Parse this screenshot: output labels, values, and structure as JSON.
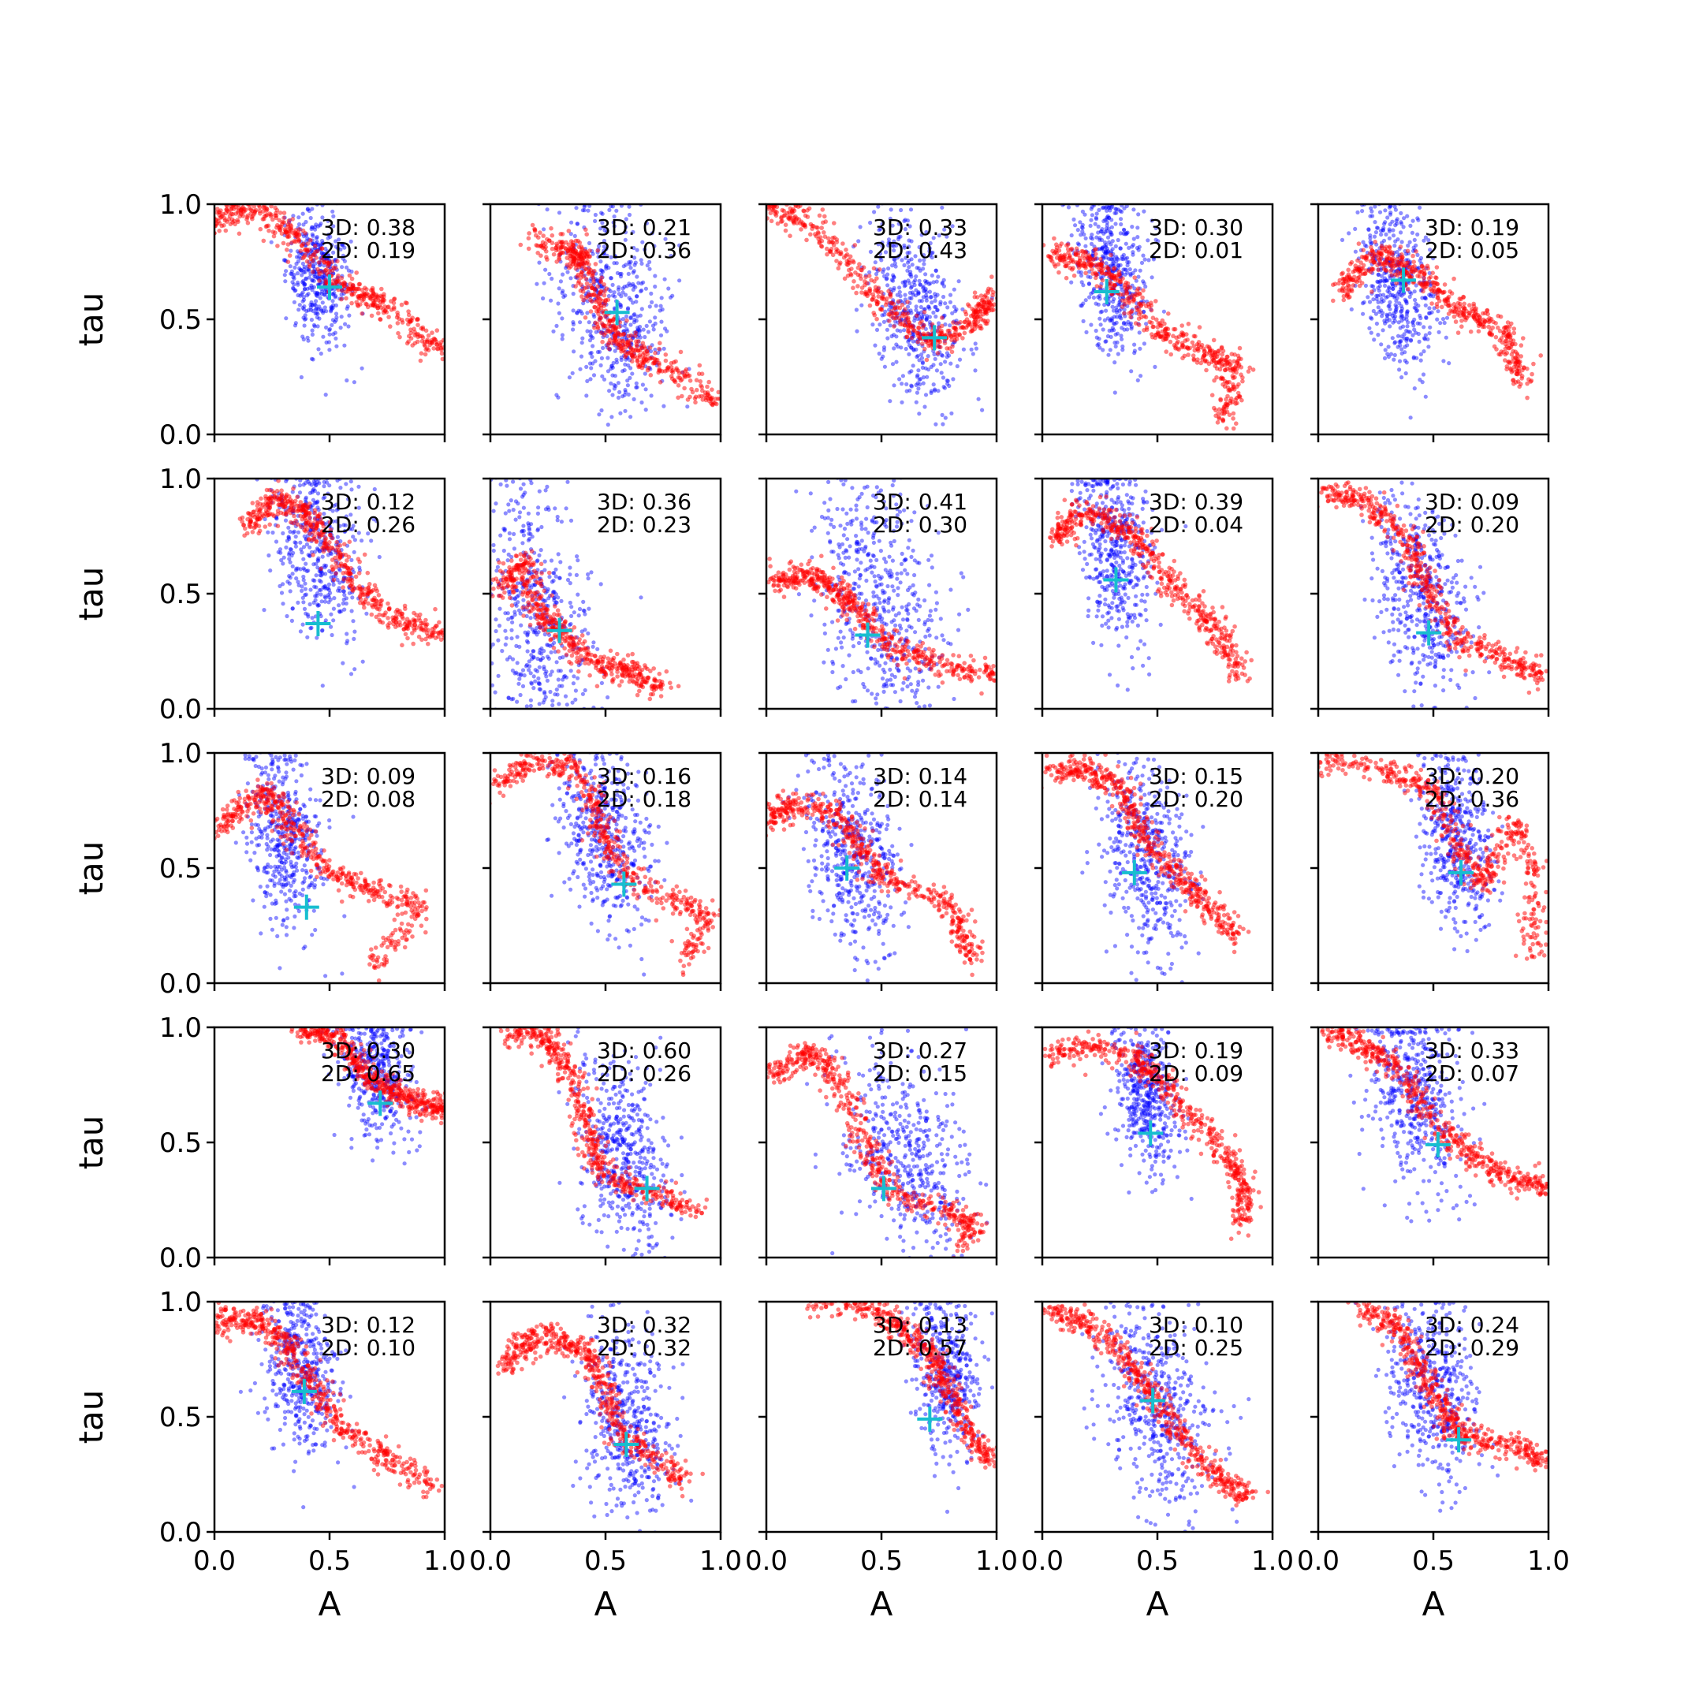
{
  "figure": {
    "xlabel": "A",
    "ylabel": "tau",
    "xticks": [
      "0.0",
      "0.5",
      "1.0"
    ],
    "yticks": [
      "0.0",
      "0.5",
      "1.0"
    ]
  },
  "chart_data": {
    "type": "scatter",
    "xlim": [
      0,
      1
    ],
    "ylim": [
      0,
      1
    ],
    "grid": false,
    "legend": "none",
    "colors": {
      "blue": "#0000ff",
      "red": "#ff0000",
      "cross": "#17becf"
    },
    "panels": [
      {
        "row": 0,
        "col": 0,
        "text_3d": "3D: 0.38",
        "text_2d": "2D: 0.19",
        "cross": [
          0.5,
          0.64
        ],
        "blue": {
          "cx": 0.45,
          "cy": 0.68,
          "sx": 0.07,
          "sy": 0.14,
          "n": 420
        },
        "red": [
          [
            0.0,
            0.92
          ],
          [
            0.18,
            1.0
          ],
          [
            0.35,
            0.86
          ],
          [
            0.55,
            0.65
          ],
          [
            0.75,
            0.55
          ],
          [
            1.0,
            0.35
          ]
        ]
      },
      {
        "row": 0,
        "col": 1,
        "text_3d": "3D: 0.21",
        "text_2d": "2D: 0.36",
        "cross": [
          0.55,
          0.53
        ],
        "blue": {
          "cx": 0.52,
          "cy": 0.55,
          "sx": 0.12,
          "sy": 0.22,
          "n": 500
        },
        "red": [
          [
            0.18,
            0.85
          ],
          [
            0.35,
            0.8
          ],
          [
            0.4,
            0.75
          ],
          [
            0.48,
            0.55
          ],
          [
            0.55,
            0.4
          ],
          [
            0.75,
            0.3
          ],
          [
            1.0,
            0.12
          ]
        ]
      },
      {
        "row": 0,
        "col": 2,
        "text_3d": "3D: 0.33",
        "text_2d": "2D: 0.43",
        "cross": [
          0.73,
          0.42
        ],
        "blue": {
          "cx": 0.65,
          "cy": 0.55,
          "sx": 0.1,
          "sy": 0.2,
          "n": 480
        },
        "red": [
          [
            0.0,
            1.0
          ],
          [
            0.2,
            0.9
          ],
          [
            0.4,
            0.7
          ],
          [
            0.6,
            0.48
          ],
          [
            0.75,
            0.4
          ],
          [
            0.9,
            0.5
          ],
          [
            1.0,
            0.6
          ]
        ]
      },
      {
        "row": 0,
        "col": 3,
        "text_3d": "3D: 0.30",
        "text_2d": "2D: 0.01",
        "cross": [
          0.28,
          0.62
        ],
        "blue": {
          "cx": 0.3,
          "cy": 0.72,
          "sx": 0.08,
          "sy": 0.18,
          "n": 460
        },
        "red": [
          [
            0.05,
            0.78
          ],
          [
            0.2,
            0.75
          ],
          [
            0.35,
            0.65
          ],
          [
            0.5,
            0.45
          ],
          [
            0.7,
            0.35
          ],
          [
            0.85,
            0.3
          ],
          [
            0.78,
            0.05
          ]
        ]
      },
      {
        "row": 0,
        "col": 4,
        "text_3d": "3D: 0.19",
        "text_2d": "2D: 0.05",
        "cross": [
          0.37,
          0.67
        ],
        "blue": {
          "cx": 0.35,
          "cy": 0.65,
          "sx": 0.08,
          "sy": 0.18,
          "n": 460
        },
        "red": [
          [
            0.1,
            0.62
          ],
          [
            0.25,
            0.78
          ],
          [
            0.4,
            0.72
          ],
          [
            0.6,
            0.55
          ],
          [
            0.8,
            0.45
          ],
          [
            0.9,
            0.22
          ]
        ]
      },
      {
        "row": 1,
        "col": 0,
        "text_3d": "3D: 0.12",
        "text_2d": "2D: 0.26",
        "cross": [
          0.45,
          0.37
        ],
        "blue": {
          "cx": 0.45,
          "cy": 0.7,
          "sx": 0.1,
          "sy": 0.2,
          "n": 460
        },
        "red": [
          [
            0.15,
            0.78
          ],
          [
            0.25,
            0.92
          ],
          [
            0.4,
            0.85
          ],
          [
            0.5,
            0.7
          ],
          [
            0.65,
            0.5
          ],
          [
            0.8,
            0.38
          ],
          [
            1.0,
            0.32
          ]
        ]
      },
      {
        "row": 1,
        "col": 1,
        "text_3d": "3D: 0.36",
        "text_2d": "2D: 0.23",
        "cross": [
          0.3,
          0.34
        ],
        "blue": {
          "cx": 0.2,
          "cy": 0.4,
          "sx": 0.12,
          "sy": 0.28,
          "n": 520
        },
        "red": [
          [
            0.05,
            0.5
          ],
          [
            0.15,
            0.65
          ],
          [
            0.2,
            0.45
          ],
          [
            0.3,
            0.32
          ],
          [
            0.45,
            0.2
          ],
          [
            0.6,
            0.17
          ],
          [
            0.75,
            0.08
          ]
        ]
      },
      {
        "row": 1,
        "col": 2,
        "text_3d": "3D: 0.41",
        "text_2d": "2D: 0.30",
        "cross": [
          0.44,
          0.32
        ],
        "blue": {
          "cx": 0.5,
          "cy": 0.45,
          "sx": 0.14,
          "sy": 0.25,
          "n": 520
        },
        "red": [
          [
            0.02,
            0.55
          ],
          [
            0.2,
            0.58
          ],
          [
            0.35,
            0.48
          ],
          [
            0.5,
            0.3
          ],
          [
            0.7,
            0.2
          ],
          [
            1.0,
            0.15
          ]
        ]
      },
      {
        "row": 1,
        "col": 3,
        "text_3d": "3D: 0.39",
        "text_2d": "2D: 0.04",
        "cross": [
          0.32,
          0.56
        ],
        "blue": {
          "cx": 0.32,
          "cy": 0.72,
          "sx": 0.08,
          "sy": 0.2,
          "n": 480
        },
        "red": [
          [
            0.05,
            0.72
          ],
          [
            0.15,
            0.85
          ],
          [
            0.3,
            0.82
          ],
          [
            0.45,
            0.7
          ],
          [
            0.6,
            0.5
          ],
          [
            0.75,
            0.35
          ],
          [
            0.85,
            0.15
          ]
        ]
      },
      {
        "row": 1,
        "col": 4,
        "text_3d": "3D: 0.09",
        "text_2d": "2D: 0.20",
        "cross": [
          0.48,
          0.33
        ],
        "blue": {
          "cx": 0.45,
          "cy": 0.5,
          "sx": 0.1,
          "sy": 0.2,
          "n": 480
        },
        "red": [
          [
            0.02,
            0.95
          ],
          [
            0.2,
            0.9
          ],
          [
            0.38,
            0.75
          ],
          [
            0.48,
            0.5
          ],
          [
            0.6,
            0.3
          ],
          [
            0.8,
            0.22
          ],
          [
            0.97,
            0.15
          ]
        ]
      },
      {
        "row": 2,
        "col": 0,
        "text_3d": "3D: 0.09",
        "text_2d": "2D: 0.08",
        "cross": [
          0.4,
          0.33
        ],
        "blue": {
          "cx": 0.3,
          "cy": 0.65,
          "sx": 0.08,
          "sy": 0.2,
          "n": 460
        },
        "red": [
          [
            0.02,
            0.68
          ],
          [
            0.15,
            0.78
          ],
          [
            0.25,
            0.82
          ],
          [
            0.35,
            0.65
          ],
          [
            0.5,
            0.48
          ],
          [
            0.7,
            0.4
          ],
          [
            0.9,
            0.33
          ],
          [
            0.7,
            0.07
          ]
        ]
      },
      {
        "row": 2,
        "col": 1,
        "text_3d": "3D: 0.16",
        "text_2d": "2D: 0.18",
        "cross": [
          0.58,
          0.43
        ],
        "blue": {
          "cx": 0.5,
          "cy": 0.65,
          "sx": 0.1,
          "sy": 0.2,
          "n": 480
        },
        "red": [
          [
            0.02,
            0.85
          ],
          [
            0.15,
            0.95
          ],
          [
            0.35,
            0.95
          ],
          [
            0.45,
            0.8
          ],
          [
            0.5,
            0.6
          ],
          [
            0.6,
            0.45
          ],
          [
            0.8,
            0.35
          ],
          [
            0.95,
            0.3
          ],
          [
            0.85,
            0.1
          ]
        ]
      },
      {
        "row": 2,
        "col": 2,
        "text_3d": "3D: 0.14",
        "text_2d": "2D: 0.14",
        "cross": [
          0.35,
          0.5
        ],
        "blue": {
          "cx": 0.38,
          "cy": 0.55,
          "sx": 0.1,
          "sy": 0.2,
          "n": 480
        },
        "red": [
          [
            0.02,
            0.7
          ],
          [
            0.1,
            0.78
          ],
          [
            0.3,
            0.75
          ],
          [
            0.4,
            0.6
          ],
          [
            0.5,
            0.45
          ],
          [
            0.75,
            0.38
          ],
          [
            0.85,
            0.25
          ],
          [
            0.88,
            0.1
          ]
        ]
      },
      {
        "row": 2,
        "col": 3,
        "text_3d": "3D: 0.15",
        "text_2d": "2D: 0.20",
        "cross": [
          0.4,
          0.48
        ],
        "blue": {
          "cx": 0.45,
          "cy": 0.55,
          "sx": 0.1,
          "sy": 0.2,
          "n": 480
        },
        "red": [
          [
            0.02,
            0.92
          ],
          [
            0.2,
            0.92
          ],
          [
            0.35,
            0.85
          ],
          [
            0.45,
            0.6
          ],
          [
            0.6,
            0.45
          ],
          [
            0.7,
            0.35
          ],
          [
            0.85,
            0.2
          ]
        ]
      },
      {
        "row": 2,
        "col": 4,
        "text_3d": "3D: 0.20",
        "text_2d": "2D: 0.36",
        "cross": [
          0.62,
          0.48
        ],
        "blue": {
          "cx": 0.6,
          "cy": 0.62,
          "sx": 0.08,
          "sy": 0.18,
          "n": 460
        },
        "red": [
          [
            0.02,
            0.97
          ],
          [
            0.3,
            0.92
          ],
          [
            0.5,
            0.85
          ],
          [
            0.6,
            0.6
          ],
          [
            0.72,
            0.42
          ],
          [
            0.85,
            0.7
          ],
          [
            0.95,
            0.45
          ],
          [
            0.92,
            0.1
          ]
        ]
      },
      {
        "row": 3,
        "col": 0,
        "text_3d": "3D: 0.30",
        "text_2d": "2D: 0.65",
        "cross": [
          0.72,
          0.67
        ],
        "blue": {
          "cx": 0.7,
          "cy": 0.8,
          "sx": 0.08,
          "sy": 0.14,
          "n": 420
        },
        "red": [
          [
            0.35,
            1.0
          ],
          [
            0.55,
            0.95
          ],
          [
            0.7,
            0.75
          ],
          [
            0.85,
            0.68
          ],
          [
            1.0,
            0.65
          ]
        ]
      },
      {
        "row": 3,
        "col": 1,
        "text_3d": "3D: 0.60",
        "text_2d": "2D: 0.26",
        "cross": [
          0.68,
          0.3
        ],
        "blue": {
          "cx": 0.58,
          "cy": 0.45,
          "sx": 0.1,
          "sy": 0.22,
          "n": 480
        },
        "red": [
          [
            0.1,
            0.98
          ],
          [
            0.25,
            0.95
          ],
          [
            0.35,
            0.8
          ],
          [
            0.42,
            0.55
          ],
          [
            0.5,
            0.35
          ],
          [
            0.7,
            0.28
          ],
          [
            0.9,
            0.2
          ]
        ]
      },
      {
        "row": 3,
        "col": 2,
        "text_3d": "3D: 0.27",
        "text_2d": "2D: 0.15",
        "cross": [
          0.51,
          0.3
        ],
        "blue": {
          "cx": 0.6,
          "cy": 0.42,
          "sx": 0.14,
          "sy": 0.22,
          "n": 480
        },
        "red": [
          [
            0.02,
            0.78
          ],
          [
            0.15,
            0.88
          ],
          [
            0.25,
            0.85
          ],
          [
            0.35,
            0.7
          ],
          [
            0.45,
            0.45
          ],
          [
            0.55,
            0.28
          ],
          [
            0.75,
            0.22
          ],
          [
            0.9,
            0.15
          ],
          [
            0.85,
            0.05
          ]
        ]
      },
      {
        "row": 3,
        "col": 3,
        "text_3d": "3D: 0.19",
        "text_2d": "2D: 0.09",
        "cross": [
          0.47,
          0.54
        ],
        "blue": {
          "cx": 0.45,
          "cy": 0.72,
          "sx": 0.07,
          "sy": 0.16,
          "n": 460
        },
        "red": [
          [
            0.02,
            0.88
          ],
          [
            0.2,
            0.92
          ],
          [
            0.4,
            0.88
          ],
          [
            0.5,
            0.78
          ],
          [
            0.65,
            0.62
          ],
          [
            0.8,
            0.45
          ],
          [
            0.88,
            0.3
          ],
          [
            0.87,
            0.12
          ]
        ]
      },
      {
        "row": 3,
        "col": 4,
        "text_3d": "3D: 0.33",
        "text_2d": "2D: 0.07",
        "cross": [
          0.52,
          0.49
        ],
        "blue": {
          "cx": 0.42,
          "cy": 0.7,
          "sx": 0.1,
          "sy": 0.2,
          "n": 480
        },
        "red": [
          [
            0.02,
            1.0
          ],
          [
            0.2,
            0.92
          ],
          [
            0.35,
            0.82
          ],
          [
            0.5,
            0.6
          ],
          [
            0.65,
            0.45
          ],
          [
            0.8,
            0.35
          ],
          [
            1.0,
            0.3
          ]
        ]
      },
      {
        "row": 4,
        "col": 0,
        "text_3d": "3D: 0.12",
        "text_2d": "2D: 0.10",
        "cross": [
          0.39,
          0.61
        ],
        "blue": {
          "cx": 0.38,
          "cy": 0.72,
          "sx": 0.08,
          "sy": 0.18,
          "n": 460
        },
        "red": [
          [
            0.02,
            0.92
          ],
          [
            0.15,
            0.92
          ],
          [
            0.3,
            0.85
          ],
          [
            0.4,
            0.68
          ],
          [
            0.55,
            0.45
          ],
          [
            0.75,
            0.32
          ],
          [
            0.95,
            0.2
          ]
        ]
      },
      {
        "row": 4,
        "col": 1,
        "text_3d": "3D: 0.32",
        "text_2d": "2D: 0.32",
        "cross": [
          0.59,
          0.38
        ],
        "blue": {
          "cx": 0.6,
          "cy": 0.45,
          "sx": 0.1,
          "sy": 0.2,
          "n": 480
        },
        "red": [
          [
            0.05,
            0.7
          ],
          [
            0.15,
            0.82
          ],
          [
            0.28,
            0.85
          ],
          [
            0.42,
            0.78
          ],
          [
            0.5,
            0.6
          ],
          [
            0.55,
            0.42
          ],
          [
            0.7,
            0.33
          ],
          [
            0.85,
            0.22
          ]
        ]
      },
      {
        "row": 4,
        "col": 2,
        "text_3d": "3D: 0.13",
        "text_2d": "2D: 0.57",
        "cross": [
          0.71,
          0.49
        ],
        "blue": {
          "cx": 0.78,
          "cy": 0.7,
          "sx": 0.08,
          "sy": 0.18,
          "n": 440
        },
        "red": [
          [
            0.2,
            1.0
          ],
          [
            0.45,
            0.98
          ],
          [
            0.6,
            0.88
          ],
          [
            0.72,
            0.75
          ],
          [
            0.8,
            0.6
          ],
          [
            0.88,
            0.42
          ],
          [
            1.0,
            0.3
          ]
        ]
      },
      {
        "row": 4,
        "col": 3,
        "text_3d": "3D: 0.10",
        "text_2d": "2D: 0.25",
        "cross": [
          0.48,
          0.57
        ],
        "blue": {
          "cx": 0.5,
          "cy": 0.55,
          "sx": 0.12,
          "sy": 0.22,
          "n": 500
        },
        "red": [
          [
            0.02,
            0.97
          ],
          [
            0.2,
            0.9
          ],
          [
            0.38,
            0.75
          ],
          [
            0.5,
            0.55
          ],
          [
            0.62,
            0.38
          ],
          [
            0.78,
            0.22
          ],
          [
            0.9,
            0.15
          ]
        ]
      },
      {
        "row": 4,
        "col": 4,
        "text_3d": "3D: 0.24",
        "text_2d": "2D: 0.29",
        "cross": [
          0.61,
          0.4
        ],
        "blue": {
          "cx": 0.5,
          "cy": 0.62,
          "sx": 0.1,
          "sy": 0.2,
          "n": 480
        },
        "red": [
          [
            0.2,
            0.97
          ],
          [
            0.35,
            0.88
          ],
          [
            0.45,
            0.7
          ],
          [
            0.55,
            0.5
          ],
          [
            0.65,
            0.4
          ],
          [
            0.85,
            0.38
          ],
          [
            1.0,
            0.3
          ]
        ]
      }
    ]
  }
}
